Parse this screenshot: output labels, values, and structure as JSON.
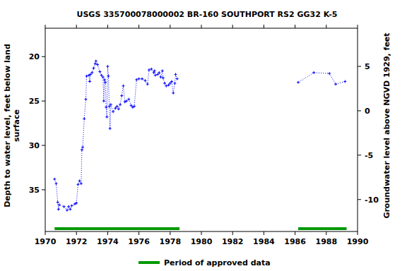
{
  "chart_data": {
    "type": "line",
    "title": "USGS 335700078000002 BR-160 SOUTHPORT RS2 GG32 K-5",
    "ylabel": [
      "Depth to water level, feet below land",
      "surface"
    ],
    "y2label": "Groundwater level above NGVD 1929, feet",
    "xlim": [
      1970,
      1990
    ],
    "xticks": [
      1970,
      1972,
      1974,
      1976,
      1978,
      1980,
      1982,
      1984,
      1986,
      1988,
      1990
    ],
    "ylim": [
      39.7,
      16.8
    ],
    "yticks": [
      20,
      25,
      30,
      35
    ],
    "y2lim": [
      -13.6,
      9.3
    ],
    "y2ticks": [
      5,
      0,
      -5,
      -10
    ],
    "grid": false,
    "legend": "bottom",
    "series": [
      {
        "color": "#0000ff",
        "line_style": "dotted",
        "marker": "plus",
        "x": [
          1970.6,
          1970.7,
          1970.8,
          1970.85,
          1970.9,
          1971.2,
          1971.4,
          1971.5,
          1971.6,
          1971.7,
          1971.9,
          1972.0,
          1972.1,
          1972.2,
          1972.3,
          1972.35,
          1972.4,
          1972.5,
          1972.6,
          1972.65,
          1972.8,
          1972.85,
          1972.9,
          1973.0,
          1973.1,
          1973.2,
          1973.25,
          1973.35,
          1973.5,
          1973.6,
          1973.7,
          1973.75,
          1973.8,
          1973.85,
          1973.9,
          1973.95,
          1974.0,
          1974.05,
          1974.1,
          1974.15,
          1974.2,
          1974.35,
          1974.5,
          1974.6,
          1974.7,
          1974.8,
          1974.9,
          1975.0,
          1975.1,
          1975.2,
          1975.35,
          1975.5,
          1975.6,
          1975.7,
          1975.85,
          1976.0,
          1976.2,
          1976.4,
          1976.55,
          1976.65,
          1976.8,
          1976.95,
          1977.0,
          1977.05,
          1977.2,
          1977.3,
          1977.4,
          1977.5,
          1977.55,
          1977.65,
          1977.75,
          1977.9,
          1978.0,
          1978.1,
          1978.2,
          1978.3,
          1978.35,
          1978.45,
          1982.0,
          1986.2,
          1987.2,
          1988.2,
          1988.6,
          1989.2
        ],
        "values": [
          33.8,
          34.3,
          36.4,
          37.2,
          36.7,
          36.9,
          37.3,
          36.9,
          37.2,
          36.8,
          36.6,
          36.5,
          34.4,
          34.0,
          34.3,
          30.5,
          30.2,
          27.0,
          24.8,
          22.2,
          22.1,
          22.8,
          22.0,
          21.8,
          21.3,
          20.8,
          20.5,
          20.9,
          21.7,
          22.1,
          22.3,
          25.0,
          22.6,
          22.9,
          25.7,
          26.8,
          21.1,
          22.2,
          25.6,
          28.1,
          25.4,
          26.2,
          25.8,
          25.6,
          25.9,
          25.4,
          24.4,
          23.3,
          25.1,
          25.0,
          24.8,
          25.5,
          25.7,
          25.6,
          22.6,
          22.5,
          22.5,
          22.7,
          23.1,
          21.5,
          21.4,
          21.8,
          21.6,
          22.1,
          22.0,
          21.8,
          22.3,
          21.6,
          22.4,
          23.0,
          23.3,
          23.2,
          23.0,
          22.8,
          24.1,
          23.0,
          22.0,
          22.5,
          null,
          22.9,
          21.8,
          21.9,
          23.1,
          22.8
        ]
      },
      {
        "name": "Period of approved data",
        "type": "period",
        "color": "#009900",
        "ranges": [
          [
            1970.6,
            1978.6
          ],
          [
            1986.2,
            1989.3
          ]
        ]
      }
    ]
  }
}
